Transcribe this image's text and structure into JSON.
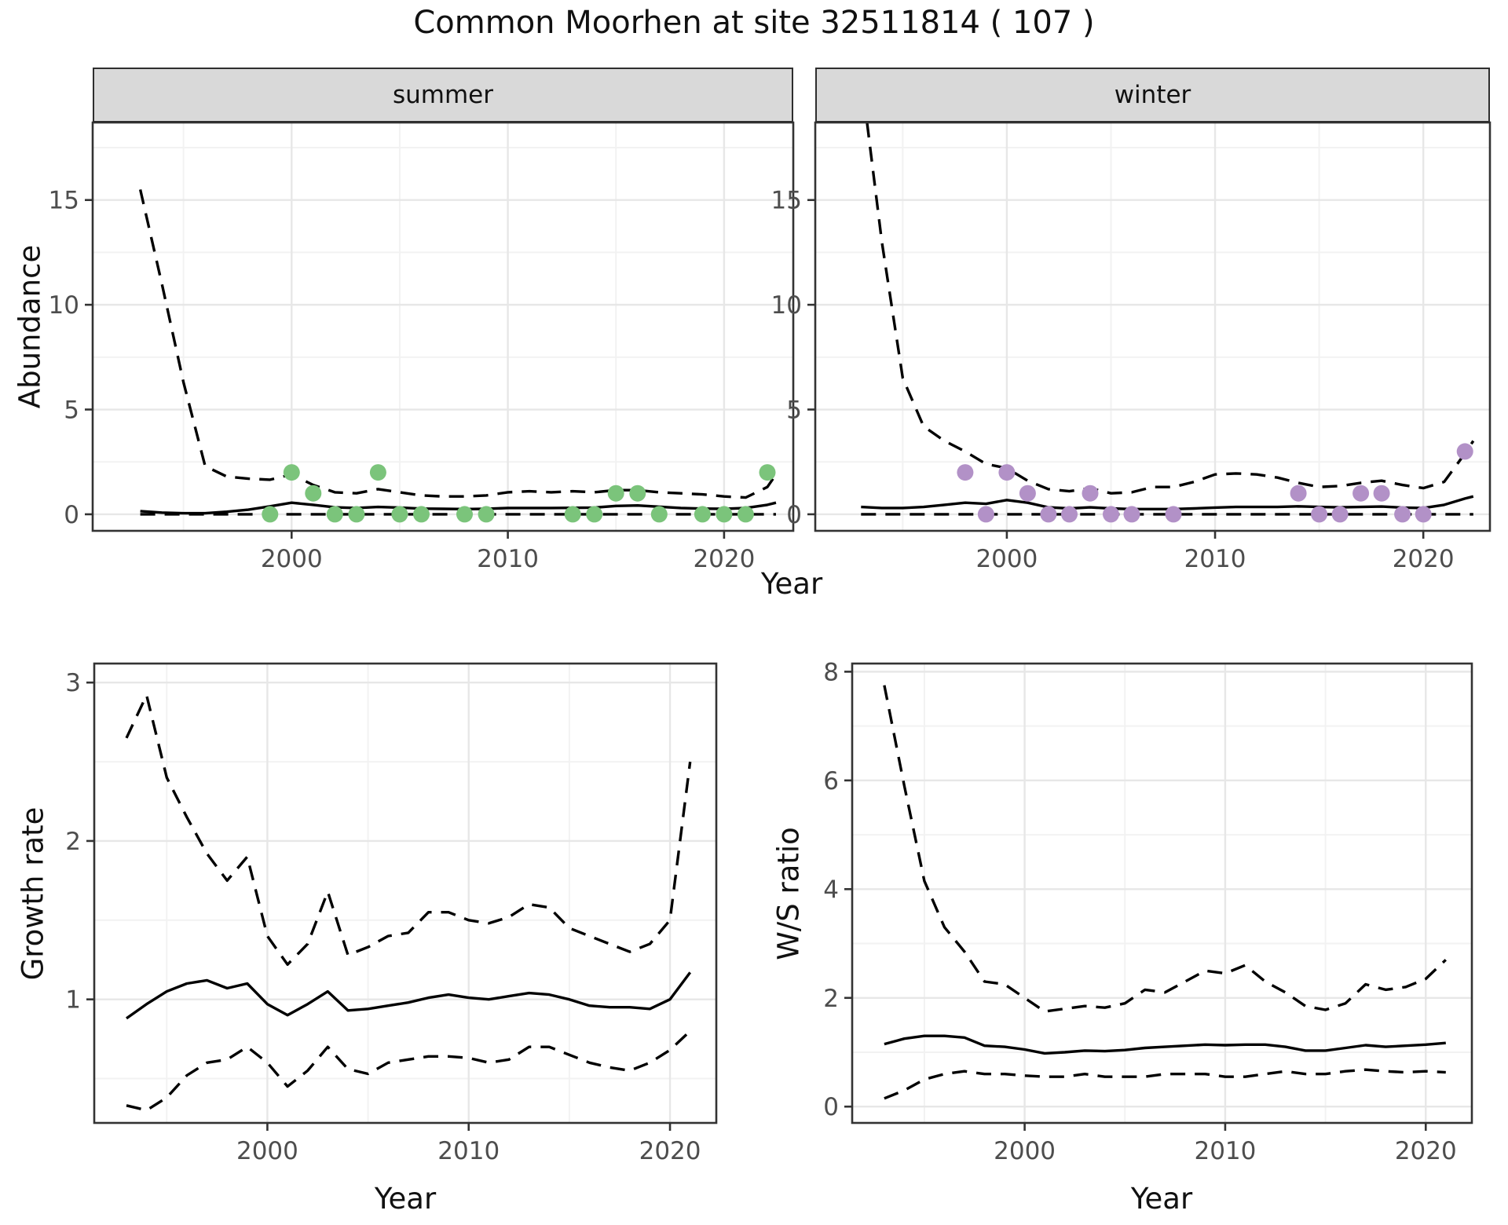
{
  "title": "Common Moorhen at site 32511814 ( 107 )",
  "axis_labels": {
    "abundance": "Abundance",
    "year": "Year",
    "growth_rate": "Growth rate",
    "ws_ratio": "W/S ratio"
  },
  "colors": {
    "summer_points": "#7BC47B",
    "winter_points": "#B291C7",
    "mean_line": "#000000",
    "ci_line": "#000000",
    "strip_fill": "#D9D9D9",
    "panel_border": "#333333",
    "grid_major": "#E7E7E7",
    "grid_minor": "#F2F2F2",
    "tick": "#333333",
    "axis_text": "#4D4D4D"
  },
  "chart_data": [
    {
      "id": "abundance-summer",
      "type": "line+scatter",
      "facet_label": "summer",
      "xlabel": "Year",
      "ylabel": "Abundance",
      "xlim": [
        1990.8,
        2023.2
      ],
      "ylim": [
        -0.79,
        18.7
      ],
      "xticks": [
        2000,
        2010,
        2020
      ],
      "xminor": [
        1995,
        2005,
        2015
      ],
      "yticks": [
        0,
        5,
        10,
        15
      ],
      "yminor": [
        2.5,
        7.5,
        12.5,
        17.5
      ],
      "years": [
        1993,
        1994,
        1995,
        1996,
        1997,
        1998,
        1999,
        2000,
        2001,
        2002,
        2003,
        2004,
        2005,
        2006,
        2007,
        2008,
        2009,
        2010,
        2011,
        2012,
        2013,
        2014,
        2015,
        2016,
        2017,
        2018,
        2019,
        2020,
        2021,
        2022,
        2022.4
      ],
      "series": [
        {
          "name": "upper_ci",
          "style": "dashed",
          "values": [
            15.5,
            11,
            6.3,
            2.3,
            1.8,
            1.7,
            1.65,
            1.9,
            1.4,
            1.05,
            1.0,
            1.2,
            1.05,
            0.9,
            0.85,
            0.85,
            0.9,
            1.05,
            1.1,
            1.05,
            1.1,
            1.05,
            1.15,
            1.15,
            1.05,
            1.0,
            0.95,
            0.85,
            0.8,
            1.3,
            1.9
          ]
        },
        {
          "name": "mean",
          "style": "solid",
          "values": [
            0.15,
            0.08,
            0.05,
            0.05,
            0.12,
            0.22,
            0.38,
            0.55,
            0.45,
            0.33,
            0.3,
            0.35,
            0.32,
            0.27,
            0.26,
            0.25,
            0.26,
            0.3,
            0.3,
            0.3,
            0.31,
            0.32,
            0.4,
            0.42,
            0.36,
            0.3,
            0.27,
            0.26,
            0.3,
            0.45,
            0.55
          ]
        },
        {
          "name": "lower_ci",
          "style": "dashed",
          "values": [
            0,
            0,
            0,
            0,
            0,
            0,
            0,
            0,
            0,
            0,
            0,
            0,
            0,
            0,
            0,
            0,
            0,
            0,
            0,
            0,
            0,
            0,
            0,
            0,
            0,
            0,
            0,
            0,
            0,
            0,
            0
          ]
        }
      ],
      "points": {
        "color_key": "summer_points",
        "x": [
          1999,
          2000,
          2001,
          2002,
          2003,
          2004,
          2005,
          2006,
          2008,
          2009,
          2013,
          2014,
          2015,
          2016,
          2017,
          2019,
          2020,
          2021,
          2022
        ],
        "y": [
          0,
          2,
          1,
          0,
          0,
          2,
          0,
          0,
          0,
          0,
          0,
          0,
          1,
          1,
          0,
          0,
          0,
          0,
          2
        ]
      }
    },
    {
      "id": "abundance-winter",
      "type": "line+scatter",
      "facet_label": "winter",
      "xlabel": "Year",
      "ylabel": "Abundance",
      "xlim": [
        1990.8,
        2023.2
      ],
      "ylim": [
        -0.79,
        18.7
      ],
      "xticks": [
        2000,
        2010,
        2020
      ],
      "xminor": [
        1995,
        2005,
        2015
      ],
      "yticks": [
        0,
        5,
        10,
        15
      ],
      "yminor": [
        2.5,
        7.5,
        12.5,
        17.5
      ],
      "years": [
        1993,
        1994,
        1995,
        1996,
        1997,
        1998,
        1999,
        2000,
        2001,
        2002,
        2003,
        2004,
        2005,
        2006,
        2007,
        2008,
        2009,
        2010,
        2011,
        2012,
        2013,
        2014,
        2015,
        2016,
        2017,
        2018,
        2019,
        2020,
        2021,
        2022,
        2022.4
      ],
      "series": [
        {
          "name": "upper_ci",
          "style": "dashed",
          "values": [
            21,
            13,
            6.5,
            4.2,
            3.5,
            3.0,
            2.4,
            2.2,
            1.6,
            1.2,
            1.1,
            1.25,
            1.0,
            1.05,
            1.3,
            1.3,
            1.55,
            1.9,
            1.95,
            1.9,
            1.75,
            1.5,
            1.3,
            1.35,
            1.5,
            1.6,
            1.4,
            1.25,
            1.55,
            2.9,
            3.5
          ]
        },
        {
          "name": "mean",
          "style": "solid",
          "values": [
            0.35,
            0.3,
            0.3,
            0.35,
            0.45,
            0.55,
            0.5,
            0.68,
            0.55,
            0.33,
            0.28,
            0.33,
            0.28,
            0.25,
            0.25,
            0.25,
            0.28,
            0.32,
            0.35,
            0.35,
            0.35,
            0.38,
            0.35,
            0.33,
            0.35,
            0.37,
            0.32,
            0.3,
            0.45,
            0.75,
            0.85
          ]
        },
        {
          "name": "lower_ci",
          "style": "dashed",
          "values": [
            0,
            0,
            0,
            0,
            0,
            0,
            0,
            0,
            0,
            0,
            0,
            0,
            0,
            0,
            0,
            0,
            0,
            0,
            0,
            0,
            0,
            0,
            0,
            0,
            0,
            0,
            0,
            0,
            0,
            0,
            0
          ]
        }
      ],
      "points": {
        "color_key": "winter_points",
        "x": [
          1998,
          1999,
          2000,
          2001,
          2002,
          2003,
          2004,
          2005,
          2006,
          2008,
          2014,
          2015,
          2016,
          2017,
          2018,
          2019,
          2020,
          2022
        ],
        "y": [
          2,
          0,
          2,
          1,
          0,
          0,
          1,
          0,
          0,
          0,
          1,
          0,
          0,
          1,
          1,
          0,
          0,
          3
        ]
      }
    },
    {
      "id": "growth-rate",
      "type": "line",
      "facet_label": null,
      "xlabel": "Year",
      "ylabel": "Growth rate",
      "xlim": [
        1991.4,
        2022.3
      ],
      "ylim": [
        0.22,
        3.12
      ],
      "xticks": [
        2000,
        2010,
        2020
      ],
      "xminor": [
        1995,
        2005,
        2015
      ],
      "yticks": [
        1,
        2,
        3
      ],
      "yminor": [
        0.5,
        1.5,
        2.5
      ],
      "years": [
        1993,
        1994,
        1995,
        1996,
        1997,
        1998,
        1999,
        2000,
        2001,
        2002,
        2003,
        2004,
        2005,
        2006,
        2007,
        2008,
        2009,
        2010,
        2011,
        2012,
        2013,
        2014,
        2015,
        2016,
        2017,
        2018,
        2019,
        2020,
        2021
      ],
      "series": [
        {
          "name": "upper_ci",
          "style": "dashed",
          "values": [
            2.65,
            2.92,
            2.4,
            2.15,
            1.92,
            1.75,
            1.9,
            1.4,
            1.22,
            1.35,
            1.68,
            1.28,
            1.33,
            1.4,
            1.42,
            1.55,
            1.55,
            1.5,
            1.48,
            1.52,
            1.6,
            1.58,
            1.45,
            1.4,
            1.35,
            1.3,
            1.35,
            1.5,
            2.5
          ]
        },
        {
          "name": "mean",
          "style": "solid",
          "values": [
            0.88,
            0.97,
            1.05,
            1.1,
            1.12,
            1.07,
            1.1,
            0.97,
            0.9,
            0.97,
            1.05,
            0.93,
            0.94,
            0.96,
            0.98,
            1.01,
            1.03,
            1.01,
            1.0,
            1.02,
            1.04,
            1.03,
            1.0,
            0.96,
            0.95,
            0.95,
            0.94,
            1.0,
            1.17
          ]
        },
        {
          "name": "lower_ci",
          "style": "dashed",
          "values": [
            0.33,
            0.3,
            0.38,
            0.52,
            0.6,
            0.62,
            0.7,
            0.6,
            0.45,
            0.55,
            0.7,
            0.56,
            0.53,
            0.6,
            0.62,
            0.64,
            0.64,
            0.63,
            0.6,
            0.62,
            0.7,
            0.7,
            0.65,
            0.6,
            0.57,
            0.55,
            0.6,
            0.68,
            0.8
          ]
        }
      ],
      "points": null
    },
    {
      "id": "ws-ratio",
      "type": "line",
      "facet_label": null,
      "xlabel": "Year",
      "ylabel": "W/S ratio",
      "xlim": [
        1991.4,
        2022.3
      ],
      "ylim": [
        -0.3,
        8.15
      ],
      "xticks": [
        2000,
        2010,
        2020
      ],
      "xminor": [
        1995,
        2005,
        2015
      ],
      "yticks": [
        0,
        2,
        4,
        6,
        8
      ],
      "yminor": [
        1,
        3,
        5,
        7
      ],
      "years": [
        1993,
        1994,
        1995,
        1996,
        1997,
        1998,
        1999,
        2000,
        2001,
        2002,
        2003,
        2004,
        2005,
        2006,
        2007,
        2008,
        2009,
        2010,
        2011,
        2012,
        2013,
        2014,
        2015,
        2016,
        2017,
        2018,
        2019,
        2020,
        2021
      ],
      "series": [
        {
          "name": "upper_ci",
          "style": "dashed",
          "values": [
            7.75,
            5.9,
            4.15,
            3.3,
            2.85,
            2.3,
            2.25,
            2.0,
            1.75,
            1.8,
            1.85,
            1.82,
            1.9,
            2.15,
            2.1,
            2.3,
            2.5,
            2.45,
            2.6,
            2.3,
            2.1,
            1.85,
            1.78,
            1.9,
            2.25,
            2.15,
            2.2,
            2.35,
            2.7
          ]
        },
        {
          "name": "mean",
          "style": "solid",
          "values": [
            1.15,
            1.25,
            1.3,
            1.3,
            1.27,
            1.12,
            1.1,
            1.05,
            0.98,
            1.0,
            1.03,
            1.02,
            1.04,
            1.08,
            1.1,
            1.12,
            1.14,
            1.13,
            1.14,
            1.14,
            1.1,
            1.03,
            1.03,
            1.08,
            1.13,
            1.1,
            1.12,
            1.14,
            1.17
          ]
        },
        {
          "name": "lower_ci",
          "style": "dashed",
          "values": [
            0.15,
            0.3,
            0.5,
            0.6,
            0.65,
            0.6,
            0.6,
            0.57,
            0.55,
            0.55,
            0.6,
            0.55,
            0.55,
            0.55,
            0.6,
            0.6,
            0.6,
            0.55,
            0.55,
            0.6,
            0.65,
            0.6,
            0.6,
            0.65,
            0.68,
            0.65,
            0.63,
            0.65,
            0.63
          ]
        }
      ],
      "points": null
    }
  ]
}
